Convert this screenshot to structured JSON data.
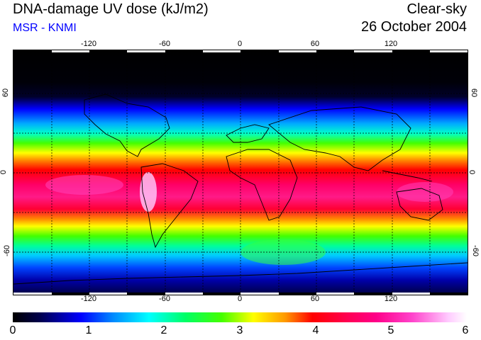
{
  "header": {
    "title": "DNA-damage UV dose (kJ/m2)",
    "subtitle": "MSR - KNMI",
    "mode": "Clear-sky",
    "date": "26 October 2004"
  },
  "map": {
    "lon_ticks": [
      "-120",
      "-60",
      "0",
      "60",
      "120"
    ],
    "lat_ticks": [
      "60",
      "0",
      "-60"
    ],
    "graticule_lon": [
      -150,
      -120,
      -90,
      -60,
      -30,
      0,
      30,
      60,
      90,
      120,
      150
    ],
    "graticule_lat": [
      60,
      30,
      0,
      -30,
      -60
    ]
  },
  "colorbar": {
    "labels": [
      "0",
      "1",
      "2",
      "3",
      "4",
      "5",
      "6"
    ],
    "min": 0,
    "max": 6
  },
  "colors": {
    "subtitle": "#0000ff",
    "background": "#ffffff"
  }
}
